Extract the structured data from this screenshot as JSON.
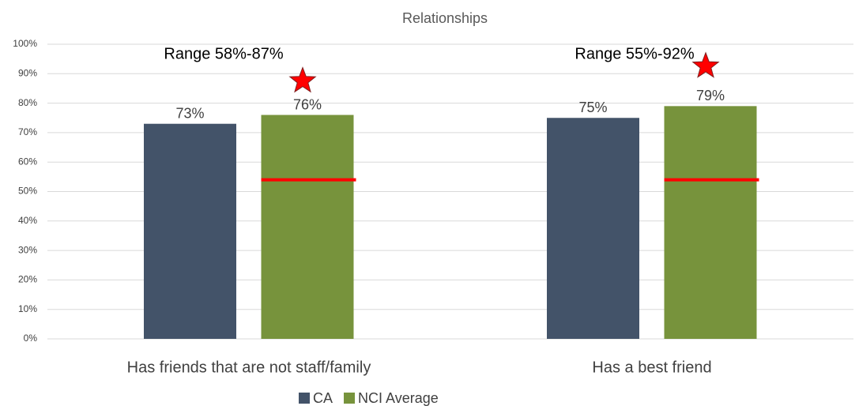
{
  "chart_data": {
    "type": "bar",
    "title": "Relationships",
    "categories": [
      "Has friends that are not staff/family",
      "Has a best friend"
    ],
    "series": [
      {
        "name": "CA",
        "color": "#435369",
        "values": [
          73,
          75
        ],
        "value_labels": [
          "73%",
          "75%"
        ]
      },
      {
        "name": "NCI Average",
        "color": "#77933c",
        "values": [
          76,
          79
        ],
        "value_labels": [
          "76%",
          "79%"
        ]
      }
    ],
    "red_line_values": [
      54,
      54
    ],
    "annotations": [
      {
        "text": "Range 58%-87%",
        "star": 87
      },
      {
        "text": "Range 55%-92%",
        "star": 92
      }
    ],
    "ylim": [
      0,
      100
    ],
    "yticks": [
      {
        "value": 0,
        "label": "0%"
      },
      {
        "value": 10,
        "label": "10%"
      },
      {
        "value": 20,
        "label": "20%"
      },
      {
        "value": 30,
        "label": "30%"
      },
      {
        "value": 40,
        "label": "40%"
      },
      {
        "value": 50,
        "label": "50%"
      },
      {
        "value": 60,
        "label": "60%"
      },
      {
        "value": 70,
        "label": "70%"
      },
      {
        "value": 80,
        "label": "80%"
      },
      {
        "value": 90,
        "label": "90%"
      },
      {
        "value": 100,
        "label": "100%"
      }
    ],
    "grid": true,
    "legend": "bottom"
  }
}
